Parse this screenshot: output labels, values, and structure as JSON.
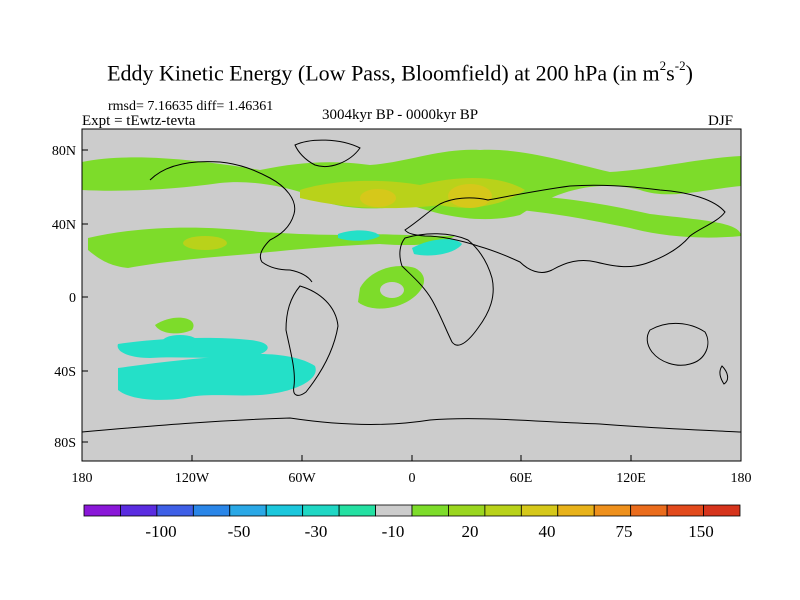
{
  "title": {
    "main": "Eddy Kinetic Energy (Low Pass, Bloomfield) at 200 hPa (in m",
    "sup1": "2",
    "mid": "s",
    "sup2": "-2",
    "end": ")"
  },
  "stats": "rmsd= 7.16635 diff= 1.46361",
  "expt": "Expt = tEwtz-tevta",
  "period": "3004kyr BP - 0000kyr BP",
  "season": "DJF",
  "lon_ticks": [
    "180",
    "120W",
    "60W",
    "0",
    "60E",
    "120E",
    "180"
  ],
  "lat_ticks": [
    "80N",
    "40N",
    "0",
    "40S",
    "80S"
  ],
  "colorbar": {
    "colors": [
      "#8a17d8",
      "#5a2ce0",
      "#3e5fe6",
      "#2a86e8",
      "#2aa8e6",
      "#1cc7dc",
      "#1fd7c4",
      "#24e0a2",
      "#cccccc",
      "#7ddc2a",
      "#9ad61f",
      "#b9d21a",
      "#d6c81a",
      "#e8b21a",
      "#ee901c",
      "#ea6c1c",
      "#e24a1c",
      "#d6341c"
    ],
    "labels": [
      "-100",
      "-50",
      "-30",
      "-10",
      "20",
      "40",
      "75",
      "150"
    ]
  },
  "colors": {
    "ocean": "#cccccc",
    "positive": "#7ddc2a",
    "positive_high": "#b9d21a",
    "strong": "#d6c81a",
    "negative": "#24e0c8"
  }
}
